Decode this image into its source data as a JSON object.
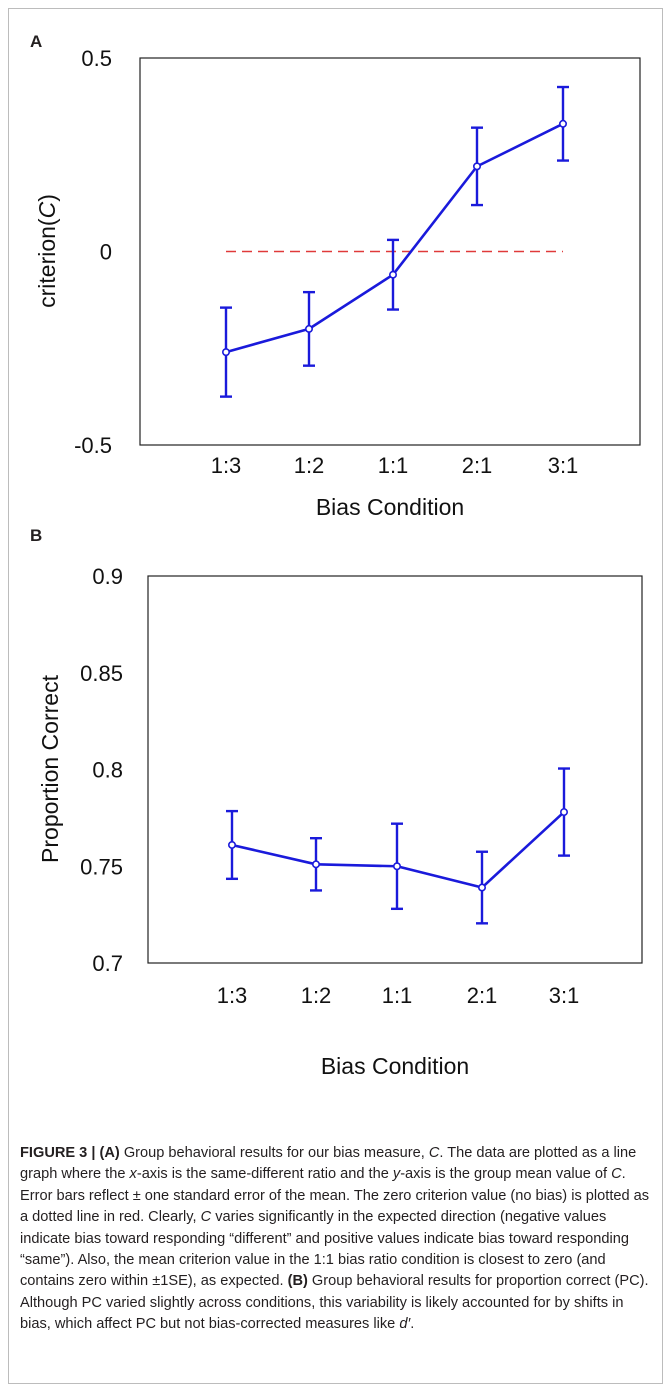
{
  "chart_data": [
    {
      "panel": "A",
      "type": "line",
      "categories": [
        "1:3",
        "1:2",
        "1:1",
        "2:1",
        "3:1"
      ],
      "series": [
        {
          "values": [
            -0.26,
            -0.2,
            -0.06,
            0.22,
            0.33
          ],
          "error": [
            0.115,
            0.095,
            0.09,
            0.1,
            0.095
          ],
          "color": "#1a1adb"
        }
      ],
      "reference_line": {
        "y": 0,
        "style": "dashed",
        "color": "#e03a3a"
      },
      "xlabel": "Bias Condition",
      "ylabel_text": "criterion(",
      "ylabel_italic": "C",
      "ylabel_close": ")",
      "ylim": [
        -0.5,
        0.5
      ],
      "yticks": [
        0.5,
        0,
        -0.5
      ],
      "ytick_labels": [
        "0.5",
        "0",
        "-0.5"
      ]
    },
    {
      "panel": "B",
      "type": "line",
      "categories": [
        "1:3",
        "1:2",
        "1:1",
        "2:1",
        "3:1"
      ],
      "series": [
        {
          "values": [
            0.761,
            0.751,
            0.75,
            0.739,
            0.778
          ],
          "error": [
            0.0175,
            0.0135,
            0.022,
            0.0185,
            0.0225
          ],
          "color": "#1a1adb"
        }
      ],
      "xlabel": "Bias Condition",
      "ylabel": "Proportion Correct",
      "ylim": [
        0.7,
        0.9
      ],
      "yticks": [
        0.9,
        0.85,
        0.8,
        0.75,
        0.7
      ],
      "ytick_labels": [
        "0.9",
        "0.85",
        "0.8",
        "0.75",
        "0.7"
      ]
    }
  ],
  "caption": {
    "label": "FIGURE 3 | ",
    "a_ref": "(A)",
    "a1": " Group behavioral results for our bias measure, ",
    "c1": "C",
    "a2": ". The data are plotted as a line graph where the ",
    "x_italic": "x",
    "a3": "-axis is the same-different ratio and the ",
    "y_italic": "y",
    "a4": "-axis is the group mean value of ",
    "c2": "C",
    "a5": ". Error bars reflect ± one standard error of the mean. The zero criterion value (no bias) is plotted as a dotted line in red. Clearly, ",
    "c3": "C",
    "a6": " varies significantly in the expected direction (negative values indicate bias toward responding “different” and positive values indicate bias toward responding “same”). Also, the mean criterion value in the 1:1 bias ratio condition is closest to zero (and contains zero within ±1SE), as expected. ",
    "b_ref": "(B)",
    "b1": " Group behavioral results for proportion correct (PC). Although PC varied slightly across conditions, this variability is likely accounted for by shifts in bias, which affect PC but not bias-corrected measures like ",
    "dprime": "d′",
    "b2": "."
  }
}
